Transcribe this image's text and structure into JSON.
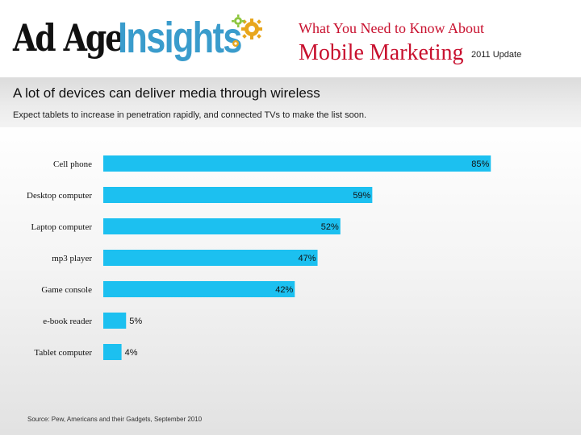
{
  "header": {
    "logo_left": "Ad Age",
    "logo_right": "Insights",
    "title_small": "What You Need to Know About",
    "title_big": "Mobile Marketing",
    "update": "2011 Update"
  },
  "colors": {
    "bar": "#1cc0f0",
    "title_red": "#c8102e",
    "logo_blue": "#3a9ccc",
    "gear_gold": "#e8a61c",
    "gear_green": "#8dc63f"
  },
  "chart_data": {
    "type": "bar",
    "orientation": "horizontal",
    "title": "A lot of devices can deliver media through wireless",
    "subtitle": "Expect tablets to increase in penetration rapidly, and connected TVs to make the list soon.",
    "categories": [
      "Cell phone",
      "Desktop computer",
      "Laptop computer",
      "mp3 player",
      "Game console",
      "e-book reader",
      "Tablet computer"
    ],
    "values": [
      85,
      59,
      52,
      47,
      42,
      5,
      4
    ],
    "labels": [
      "85%",
      "59%",
      "52%",
      "47%",
      "42%",
      "5%",
      "4%"
    ],
    "xlim": [
      0,
      100
    ],
    "grid": false,
    "legend": "none",
    "source": "Source: Pew, Americans and their Gadgets, September 2010"
  }
}
